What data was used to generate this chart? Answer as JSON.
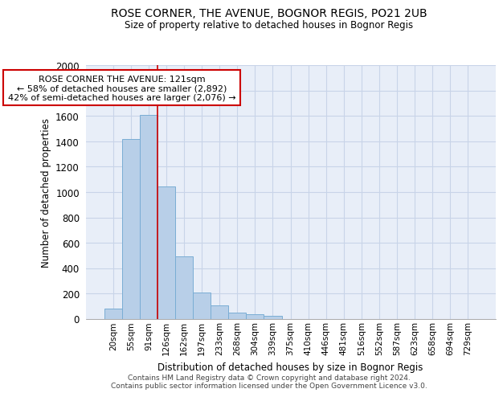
{
  "title1": "ROSE CORNER, THE AVENUE, BOGNOR REGIS, PO21 2UB",
  "title2": "Size of property relative to detached houses in Bognor Regis",
  "xlabel": "Distribution of detached houses by size in Bognor Regis",
  "ylabel": "Number of detached properties",
  "bar_color": "#b8cfe8",
  "bar_edge_color": "#7aadd4",
  "categories": [
    "20sqm",
    "55sqm",
    "91sqm",
    "126sqm",
    "162sqm",
    "197sqm",
    "233sqm",
    "268sqm",
    "304sqm",
    "339sqm",
    "375sqm",
    "410sqm",
    "446sqm",
    "481sqm",
    "516sqm",
    "552sqm",
    "587sqm",
    "623sqm",
    "658sqm",
    "694sqm",
    "729sqm"
  ],
  "values": [
    80,
    1420,
    1610,
    1045,
    490,
    205,
    105,
    45,
    35,
    20,
    0,
    0,
    0,
    0,
    0,
    0,
    0,
    0,
    0,
    0,
    0
  ],
  "ylim": [
    0,
    2000
  ],
  "yticks": [
    0,
    200,
    400,
    600,
    800,
    1000,
    1200,
    1400,
    1600,
    1800,
    2000
  ],
  "vline_index": 3,
  "annotation_text": "ROSE CORNER THE AVENUE: 121sqm\n← 58% of detached houses are smaller (2,892)\n42% of semi-detached houses are larger (2,076) →",
  "annotation_box_color": "#ffffff",
  "annotation_box_edge": "#cc0000",
  "vline_color": "#cc0000",
  "grid_color": "#c8d4e8",
  "background_color": "#e8eef8",
  "footer_text": "Contains HM Land Registry data © Crown copyright and database right 2024.\nContains public sector information licensed under the Open Government Licence v3.0."
}
